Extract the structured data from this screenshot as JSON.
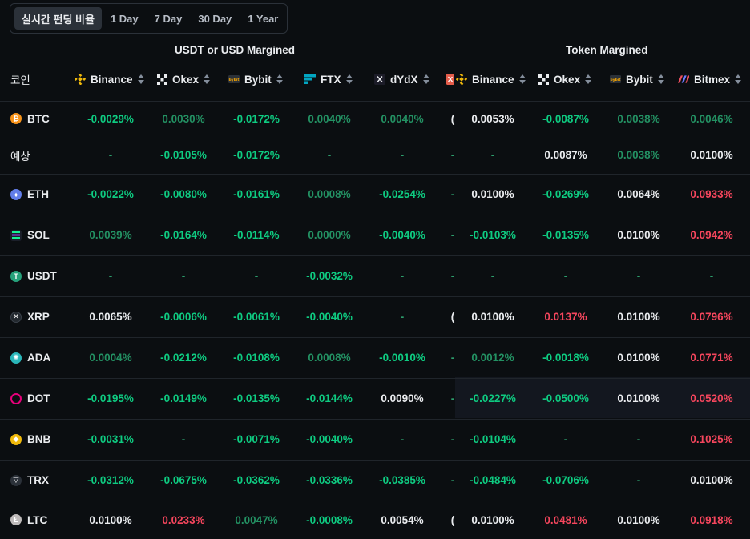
{
  "tabs": [
    "실시간 펀딩 비율",
    "1 Day",
    "7 Day",
    "30 Day",
    "1 Year"
  ],
  "groups": {
    "usdt": "USDT or USD Margined",
    "token": "Token Margined"
  },
  "header": {
    "coin": "코인",
    "exchanges": [
      "Binance",
      "Okex",
      "Bybit",
      "FTX",
      "dYdX",
      "Binance",
      "Okex",
      "Bybit",
      "Bitmex"
    ]
  },
  "colors": {
    "positive": "#0ecb81",
    "negative": "#f6465d",
    "neutral": "#eaecef"
  },
  "rows": [
    {
      "coin": "BTC",
      "icon": "btc-icon",
      "cols": [
        "-0.0029%",
        "0.0030%",
        "-0.0172%",
        "0.0040%",
        "0.0040%",
        "0.0053%",
        "-0.0087%",
        "0.0038%",
        "0.0046%"
      ],
      "styles": [
        "g",
        "dg",
        "g",
        "dg",
        "dg",
        "w",
        "g",
        "dg",
        "dg"
      ],
      "sep": "(",
      "bordered": false
    },
    {
      "coin": "예상",
      "icon": "",
      "cols": [
        "-",
        "-0.0105%",
        "-0.0172%",
        "-",
        "-",
        "-",
        "0.0087%",
        "0.0038%",
        "0.0100%"
      ],
      "styles": [
        "d",
        "g",
        "g",
        "d",
        "d",
        "d",
        "w",
        "dg",
        "w"
      ],
      "sep": "-",
      "bordered": true
    },
    {
      "coin": "ETH",
      "icon": "eth-icon",
      "cols": [
        "-0.0022%",
        "-0.0080%",
        "-0.0161%",
        "0.0008%",
        "-0.0254%",
        "0.0100%",
        "-0.0269%",
        "0.0064%",
        "0.0933%"
      ],
      "styles": [
        "g",
        "g",
        "g",
        "dg",
        "g",
        "w",
        "g",
        "w",
        "r"
      ],
      "sep": "-",
      "bordered": true
    },
    {
      "coin": "SOL",
      "icon": "sol-icon",
      "cols": [
        "0.0039%",
        "-0.0164%",
        "-0.0114%",
        "0.0000%",
        "-0.0040%",
        "-0.0103%",
        "-0.0135%",
        "0.0100%",
        "0.0942%"
      ],
      "styles": [
        "dg",
        "g",
        "g",
        "dg",
        "g",
        "g",
        "g",
        "w",
        "r"
      ],
      "sep": "-",
      "bordered": true
    },
    {
      "coin": "USDT",
      "icon": "usdt-icon",
      "cols": [
        "-",
        "-",
        "-",
        "-0.0032%",
        "-",
        "-",
        "-",
        "-",
        "-"
      ],
      "styles": [
        "d",
        "d",
        "d",
        "g",
        "d",
        "d",
        "d",
        "d",
        "d"
      ],
      "sep": "-",
      "bordered": true
    },
    {
      "coin": "XRP",
      "icon": "xrp-icon",
      "cols": [
        "0.0065%",
        "-0.0006%",
        "-0.0061%",
        "-0.0040%",
        "-",
        "0.0100%",
        "0.0137%",
        "0.0100%",
        "0.0796%"
      ],
      "styles": [
        "w",
        "g",
        "g",
        "g",
        "d",
        "w",
        "r",
        "w",
        "r"
      ],
      "sep": "(",
      "bordered": true
    },
    {
      "coin": "ADA",
      "icon": "ada-icon",
      "cols": [
        "0.0004%",
        "-0.0212%",
        "-0.0108%",
        "0.0008%",
        "-0.0010%",
        "0.0012%",
        "-0.0018%",
        "0.0100%",
        "0.0771%"
      ],
      "styles": [
        "dg",
        "g",
        "g",
        "dg",
        "g",
        "dg",
        "g",
        "w",
        "r"
      ],
      "sep": "-",
      "bordered": true
    },
    {
      "coin": "DOT",
      "icon": "dot-icon",
      "cols": [
        "-0.0195%",
        "-0.0149%",
        "-0.0135%",
        "-0.0144%",
        "0.0090%",
        "-0.0227%",
        "-0.0500%",
        "0.0100%",
        "0.0520%"
      ],
      "styles": [
        "g",
        "g",
        "g",
        "g",
        "w",
        "g",
        "g",
        "w",
        "r"
      ],
      "sep": "-",
      "bordered": true
    },
    {
      "coin": "BNB",
      "icon": "bnb-icon",
      "cols": [
        "-0.0031%",
        "-",
        "-0.0071%",
        "-0.0040%",
        "-",
        "-0.0104%",
        "-",
        "-",
        "0.1025%"
      ],
      "styles": [
        "g",
        "d",
        "g",
        "g",
        "d",
        "g",
        "d",
        "d",
        "r"
      ],
      "sep": "-",
      "bordered": true
    },
    {
      "coin": "TRX",
      "icon": "trx-icon",
      "cols": [
        "-0.0312%",
        "-0.0675%",
        "-0.0362%",
        "-0.0336%",
        "-0.0385%",
        "-0.0484%",
        "-0.0706%",
        "-",
        "0.0100%"
      ],
      "styles": [
        "g",
        "g",
        "g",
        "g",
        "g",
        "g",
        "g",
        "d",
        "w"
      ],
      "sep": "-",
      "bordered": true
    },
    {
      "coin": "LTC",
      "icon": "ltc-icon",
      "cols": [
        "0.0100%",
        "0.0233%",
        "0.0047%",
        "-0.0008%",
        "0.0054%",
        "0.0100%",
        "0.0481%",
        "0.0100%",
        "0.0918%"
      ],
      "styles": [
        "w",
        "r",
        "dg",
        "g",
        "w",
        "w",
        "r",
        "w",
        "r"
      ],
      "sep": "(",
      "bordered": false
    }
  ]
}
